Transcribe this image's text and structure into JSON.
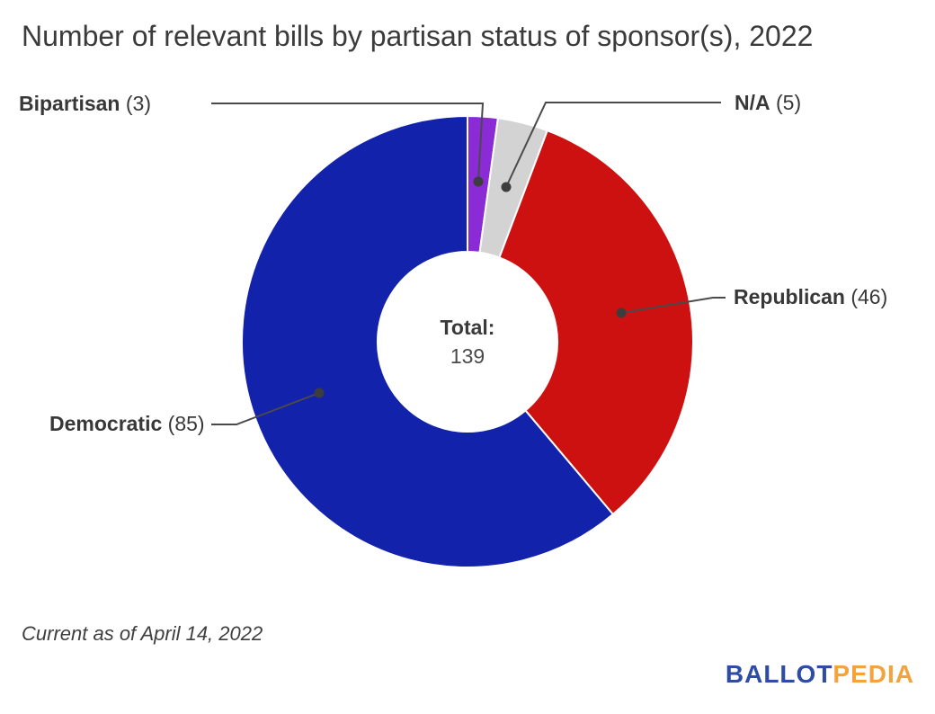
{
  "title": "Number of relevant bills by partisan status of sponsor(s), 2022",
  "footnote": "Current as of April 14, 2022",
  "center": {
    "label": "Total:",
    "value": "139"
  },
  "logo": {
    "part1": "BALLOT",
    "part2": "PEDIA",
    "part1_color": "#2E4BA5",
    "part2_color": "#F2A33C"
  },
  "chart_data": {
    "type": "pie",
    "subtype": "donut",
    "title": "Number of relevant bills by partisan status of sponsor(s), 2022",
    "total": 139,
    "center_label": "Total:",
    "center_value": 139,
    "start_angle_deg": 0,
    "direction": "clockwise",
    "series": [
      {
        "name": "Bipartisan",
        "value": 3,
        "color": "#8A2BD6"
      },
      {
        "name": "N/A",
        "value": 5,
        "color": "#D3D3D3"
      },
      {
        "name": "Republican",
        "value": 46,
        "color": "#CD1111"
      },
      {
        "name": "Democratic",
        "value": 85,
        "color": "#1222AA"
      }
    ],
    "separator_color": "#FFFFFF",
    "leader_line_color": "#4A4A4A",
    "legend_position": "callout-labels"
  }
}
